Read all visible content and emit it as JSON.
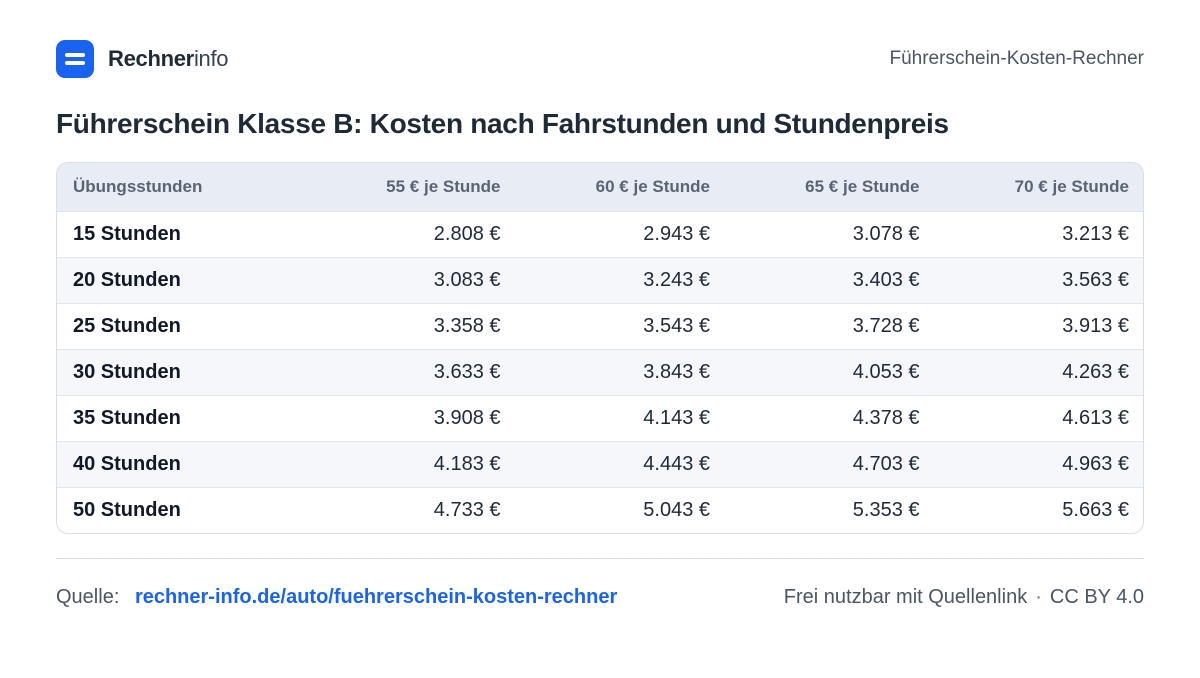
{
  "brand": {
    "name_strong": "Rechner",
    "name_light": "info",
    "logo_icon": "rechnerinfo-logo-icon"
  },
  "header": {
    "tool_name": "Führerschein-Kosten-Rechner"
  },
  "title": "Führerschein Klasse B: Kosten nach Fahrstunden und Stundenpreis",
  "table": {
    "headers": [
      "Übungsstunden",
      "55 € je Stunde",
      "60 € je Stunde",
      "65 € je Stunde",
      "70 € je Stunde"
    ],
    "rows": [
      [
        "15 Stunden",
        "2.808 €",
        "2.943 €",
        "3.078 €",
        "3.213 €"
      ],
      [
        "20 Stunden",
        "3.083 €",
        "3.243 €",
        "3.403 €",
        "3.563 €"
      ],
      [
        "25 Stunden",
        "3.358 €",
        "3.543 €",
        "3.728 €",
        "3.913 €"
      ],
      [
        "30 Stunden",
        "3.633 €",
        "3.843 €",
        "4.053 €",
        "4.263 €"
      ],
      [
        "35 Stunden",
        "3.908 €",
        "4.143 €",
        "4.378 €",
        "4.613 €"
      ],
      [
        "40 Stunden",
        "4.183 €",
        "4.443 €",
        "4.703 €",
        "4.963 €"
      ],
      [
        "50 Stunden",
        "4.733 €",
        "5.043 €",
        "5.353 €",
        "5.663 €"
      ]
    ]
  },
  "footer": {
    "source_label": "Quelle:",
    "source_link": "rechner-info.de/auto/fuehrerschein-kosten-rechner",
    "license_text": "Frei nutzbar mit Quellenlink",
    "separator": "·",
    "license": "CC BY 4.0"
  },
  "colors": {
    "accent": "#1a63f0",
    "header_bg": "#e8edf5",
    "alt_row_bg": "#f5f7fb"
  }
}
